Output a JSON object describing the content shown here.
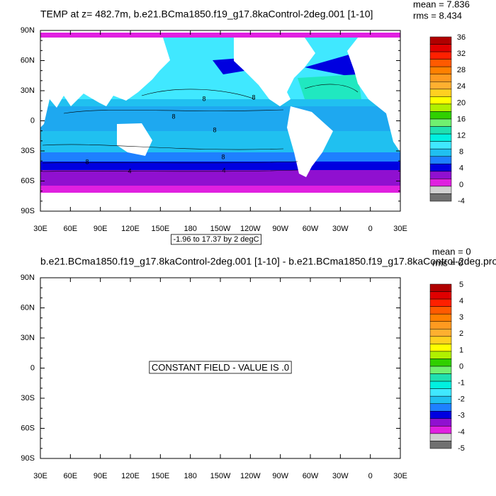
{
  "panels": [
    {
      "title": "TEMP at z= 482.7m, b.e21.BCma1850.f19_g17.8kaControl-2deg.001 [1-10]",
      "stats": [
        "mean = 7.836",
        "rms = 8.434"
      ],
      "lat_labels": [
        "90N",
        "60N",
        "30N",
        "0",
        "30S",
        "60S",
        "90S"
      ],
      "lon_labels": [
        "30E",
        "60E",
        "90E",
        "120E",
        "150E",
        "180",
        "150W",
        "120W",
        "90W",
        "60W",
        "30W",
        "0",
        "30E"
      ],
      "colorbar": {
        "labels": [
          36,
          32,
          28,
          24,
          20,
          16,
          12,
          8,
          4,
          0,
          -4
        ],
        "colors": [
          "#b00000",
          "#e00000",
          "#ff2000",
          "#ff5a00",
          "#ff8000",
          "#ff9a20",
          "#ffb030",
          "#ffd020",
          "#ffff00",
          "#b0f000",
          "#30d000",
          "#70f070",
          "#20e0b0",
          "#00f0e0",
          "#40e8ff",
          "#20c0f0",
          "#1e80ff",
          "#0000e0",
          "#9010d0",
          "#e020e0",
          "#d0d0d0",
          "#707070"
        ]
      },
      "contour_info": "-1.96 to 17.37 by 2 degC",
      "contour_labels": [
        8,
        8,
        8,
        8,
        8,
        8,
        4,
        4
      ]
    },
    {
      "title": "b.e21.BCma1850.f19_g17.8kaControl-2deg.001 [1-10] - b.e21.BCma1850.f19_g17.8kaControl-2deg.pro",
      "stats": [
        "mean = 0",
        "rms = 0"
      ],
      "lat_labels": [
        "90N",
        "60N",
        "30N",
        "0",
        "30S",
        "60S",
        "90S"
      ],
      "lon_labels": [
        "30E",
        "60E",
        "90E",
        "120E",
        "150E",
        "180",
        "150W",
        "120W",
        "90W",
        "60W",
        "30W",
        "0",
        "30E"
      ],
      "colorbar": {
        "labels": [
          5,
          4,
          3,
          2,
          1,
          0,
          -1,
          -2,
          -3,
          -4,
          -5
        ],
        "colors": [
          "#b00000",
          "#e00000",
          "#ff2000",
          "#ff5a00",
          "#ff8000",
          "#ff9a20",
          "#ffb030",
          "#ffd020",
          "#ffff00",
          "#b0f000",
          "#30d000",
          "#70f070",
          "#20e0b0",
          "#00f0e0",
          "#40e8ff",
          "#20c0f0",
          "#1e80ff",
          "#0000e0",
          "#9010d0",
          "#e020e0",
          "#d0d0d0",
          "#707070"
        ]
      },
      "message": "CONSTANT FIELD - VALUE IS .0"
    }
  ]
}
